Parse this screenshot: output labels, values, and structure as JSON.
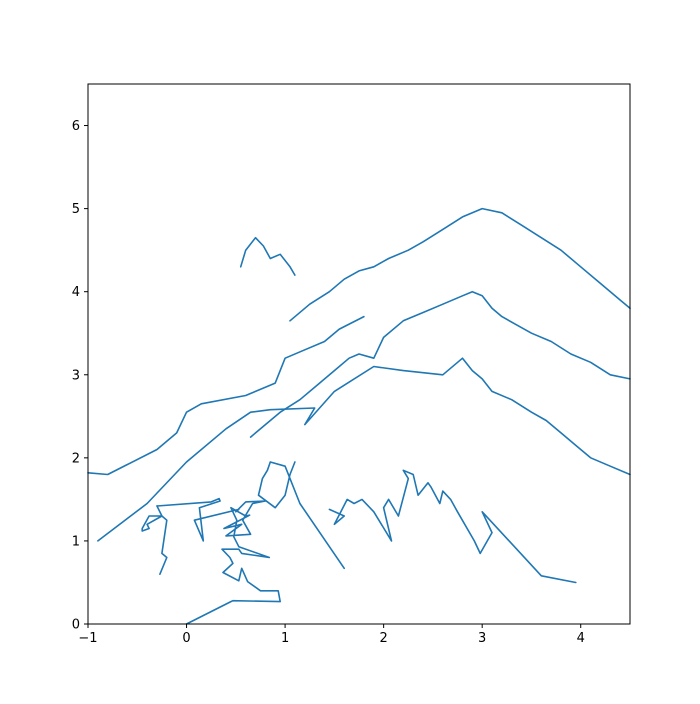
{
  "chart_data": {
    "type": "line",
    "title": "",
    "xlabel": "",
    "ylabel": "",
    "xlim": [
      -1,
      4.5
    ],
    "ylim": [
      0,
      6.5
    ],
    "xticks": [
      -1,
      0,
      1,
      2,
      3,
      4
    ],
    "yticks": [
      0,
      1,
      2,
      3,
      4,
      5,
      6
    ],
    "grid": false,
    "legend": "none",
    "line_color": "#1f77b4",
    "series": [
      {
        "x": [
          0.0,
          0.45,
          0.47,
          0.95,
          0.93,
          0.75,
          0.62,
          0.56,
          0.53,
          0.37,
          0.47,
          0.44,
          0.36,
          0.53,
          0.56,
          0.84,
          0.53,
          0.48,
          0.51,
          0.45,
          0.6,
          0.64,
          0.38,
          0.56,
          0.4,
          0.65,
          0.57,
          0.67,
          0.8,
          0.6,
          0.5,
          0.53,
          0.08,
          0.17,
          0.13,
          0.34,
          0.33,
          0.25,
          -0.3
        ],
        "y": [
          0.0,
          0.27,
          0.28,
          0.27,
          0.4,
          0.4,
          0.51,
          0.67,
          0.52,
          0.62,
          0.73,
          0.8,
          0.9,
          0.9,
          0.85,
          0.8,
          0.93,
          1.05,
          1.25,
          1.4,
          1.3,
          1.31,
          1.15,
          1.2,
          1.06,
          1.08,
          1.25,
          1.45,
          1.48,
          1.47,
          1.35,
          1.38,
          1.25,
          1.0,
          1.4,
          1.48,
          1.51,
          1.47,
          1.42
        ]
      },
      {
        "x": [
          -0.3,
          -0.25,
          -0.4,
          -0.38,
          -0.45,
          -0.45,
          -0.38,
          -0.25,
          -0.2,
          -0.25,
          -0.2,
          -0.27
        ],
        "y": [
          1.42,
          1.3,
          1.2,
          1.15,
          1.12,
          1.15,
          1.3,
          1.3,
          1.25,
          0.85,
          0.8,
          0.6
        ]
      },
      {
        "x": [
          1.45,
          1.6,
          1.5,
          1.63,
          1.7,
          1.78,
          1.9,
          2.08,
          2.0,
          2.05,
          2.15,
          2.25,
          2.2,
          2.3,
          2.35,
          2.45,
          2.48,
          2.57,
          2.6,
          2.68,
          2.75,
          2.92,
          2.98,
          3.1,
          3.0,
          3.6,
          3.95
        ],
        "y": [
          1.38,
          1.3,
          1.2,
          1.5,
          1.45,
          1.5,
          1.35,
          1.0,
          1.4,
          1.5,
          1.3,
          1.75,
          1.85,
          1.8,
          1.55,
          1.7,
          1.65,
          1.45,
          1.6,
          1.5,
          1.35,
          1.0,
          0.85,
          1.1,
          1.35,
          0.58,
          0.5
        ]
      },
      {
        "x": [
          1.6,
          1.15,
          1.0,
          0.85,
          0.82,
          0.77,
          0.73,
          0.9,
          1.0,
          1.05,
          1.1
        ],
        "y": [
          0.67,
          1.45,
          1.9,
          1.95,
          1.85,
          1.75,
          1.55,
          1.4,
          1.55,
          1.8,
          1.95
        ]
      },
      {
        "x": [
          -0.9,
          -0.4,
          0.0,
          0.4,
          0.65,
          0.85,
          1.3,
          1.2,
          1.5,
          1.9,
          2.2,
          2.6,
          2.8,
          2.9,
          3.0,
          3.1,
          3.3,
          3.5,
          3.65,
          3.8,
          3.95,
          4.1,
          4.3,
          4.5
        ],
        "y": [
          1.0,
          1.45,
          1.95,
          2.35,
          2.55,
          2.58,
          2.6,
          2.4,
          2.8,
          3.1,
          3.05,
          3.0,
          3.2,
          3.05,
          2.95,
          2.8,
          2.7,
          2.55,
          2.45,
          2.3,
          2.15,
          2.0,
          1.9,
          1.8
        ]
      },
      {
        "x": [
          -1.0,
          -0.8,
          -0.3,
          -0.1,
          0.0,
          0.15,
          0.6,
          0.9,
          1.0,
          1.2,
          1.4,
          1.55,
          1.8
        ],
        "y": [
          1.82,
          1.8,
          2.1,
          2.3,
          2.55,
          2.65,
          2.75,
          2.9,
          3.2,
          3.3,
          3.4,
          3.55,
          3.7
        ]
      },
      {
        "x": [
          0.65,
          0.8,
          0.95,
          1.15,
          1.35,
          1.5,
          1.65,
          1.75,
          1.9,
          2.0,
          2.2,
          2.4,
          2.6,
          2.8,
          2.9,
          3.0,
          3.1,
          3.2,
          3.35,
          3.5,
          3.7,
          3.9,
          4.1,
          4.3,
          4.5
        ],
        "y": [
          2.25,
          2.4,
          2.55,
          2.7,
          2.9,
          3.05,
          3.2,
          3.25,
          3.2,
          3.45,
          3.65,
          3.75,
          3.85,
          3.95,
          4.0,
          3.95,
          3.8,
          3.7,
          3.6,
          3.5,
          3.4,
          3.25,
          3.15,
          3.0,
          2.95
        ]
      },
      {
        "x": [
          1.05,
          1.25,
          1.45,
          1.6,
          1.75,
          1.9,
          2.05,
          2.25,
          2.4,
          2.6,
          2.8,
          3.0,
          3.2,
          3.4,
          3.6,
          3.8,
          4.0,
          4.2,
          4.4,
          4.5
        ],
        "y": [
          3.65,
          3.85,
          4.0,
          4.15,
          4.25,
          4.3,
          4.4,
          4.5,
          4.6,
          4.75,
          4.9,
          5.0,
          4.95,
          4.8,
          4.65,
          4.5,
          4.3,
          4.1,
          3.9,
          3.8
        ]
      },
      {
        "x": [
          0.55,
          0.6,
          0.7,
          0.78,
          0.85,
          0.95,
          1.05,
          1.1
        ],
        "y": [
          4.3,
          4.5,
          4.65,
          4.55,
          4.4,
          4.45,
          4.3,
          4.2
        ]
      }
    ]
  }
}
